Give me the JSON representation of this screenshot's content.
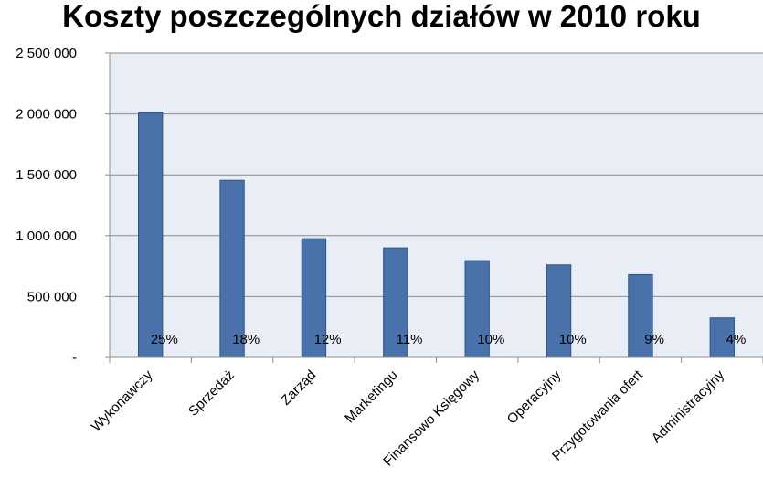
{
  "chart_data": {
    "type": "bar",
    "title": "Koszty poszczególnych działów w 2010 roku",
    "categories": [
      "Wykonawczy",
      "Sprzedaż",
      "Zarząd",
      "Marketingu",
      "Finansowo Księgowy",
      "Operacyjny",
      "Przygotowania ofert",
      "Administracyjny"
    ],
    "values": [
      2010000,
      1455000,
      975000,
      900000,
      795000,
      760000,
      680000,
      325000
    ],
    "data_labels": [
      "25%",
      "18%",
      "12%",
      "11%",
      "10%",
      "10%",
      "9%",
      "4%"
    ],
    "ylim": [
      0,
      2500000
    ],
    "yticks": [
      0,
      500000,
      1000000,
      1500000,
      2000000,
      2500000
    ],
    "ytick_labels": [
      "-",
      "500 000",
      "1 000 000",
      "1 500 000",
      "2 000 000",
      "2 500 000"
    ],
    "grid": true,
    "colors": {
      "bar": "#4a72aa",
      "bar_edge": "#2f5584",
      "plot_bg": "#e9edf5",
      "grid": "#8c8c8c"
    }
  }
}
